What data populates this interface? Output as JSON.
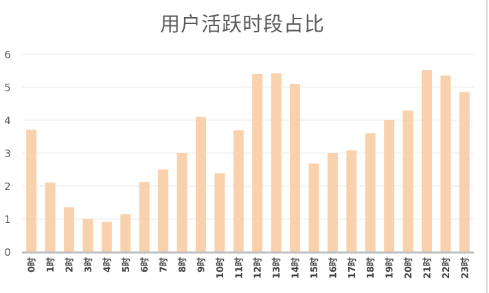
{
  "chart_data": {
    "type": "bar",
    "title": "用户活跃时段占比",
    "xlabel": "",
    "ylabel": "",
    "categories": [
      "0时",
      "1时",
      "2时",
      "3时",
      "4时",
      "5时",
      "6时",
      "7时",
      "8时",
      "9时",
      "10时",
      "11时",
      "12时",
      "13时",
      "14时",
      "15时",
      "16时",
      "17时",
      "18时",
      "19时",
      "20时",
      "21时",
      "22时",
      "23时"
    ],
    "values": [
      3.71,
      2.1,
      1.35,
      1.0,
      0.91,
      1.14,
      2.12,
      2.5,
      3.0,
      4.1,
      2.39,
      3.69,
      5.4,
      5.42,
      5.1,
      2.68,
      3.0,
      3.08,
      3.6,
      4.0,
      4.29,
      5.52,
      5.35,
      4.85
    ],
    "ylim": [
      0,
      6
    ],
    "yticks": [
      "0",
      "1",
      "2",
      "3",
      "4",
      "5",
      "6"
    ],
    "grid": true,
    "legend": "none",
    "bar_color": "#f9d1ac",
    "axis_color": "#bfbfbf",
    "grid_color": "#f0f0f0"
  }
}
